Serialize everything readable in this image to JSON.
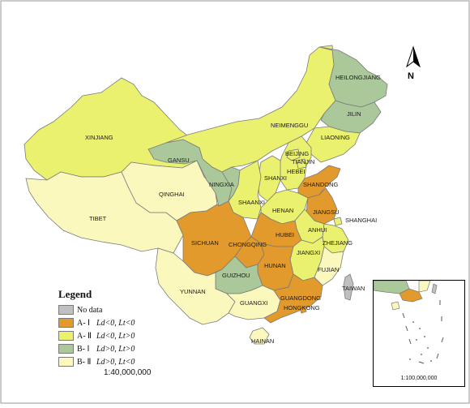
{
  "colors": {
    "no_data": "#c0c0c0",
    "a1": "#e39a2c",
    "a2": "#eaf16e",
    "b1": "#abc89a",
    "b2": "#fbf8bd",
    "sea": "#ffffff",
    "border": "#7a7a7a"
  },
  "legend": {
    "title": "Legend",
    "items": [
      {
        "code": "No data",
        "desc": "",
        "color_key": "no_data"
      },
      {
        "code": "A- Ⅰ",
        "desc": "Ld<0, Lt<0",
        "color_key": "a1"
      },
      {
        "code": "A- Ⅱ",
        "desc": "Ld<0, Lt>0",
        "color_key": "a2"
      },
      {
        "code": "B- Ⅰ",
        "desc": "Ld>0, Lt>0",
        "color_key": "b1"
      },
      {
        "code": "B- Ⅱ",
        "desc": "Ld>0, Lt<0",
        "color_key": "b2"
      }
    ]
  },
  "scale_main": "1:40,000,000",
  "scale_inset": "1:100,000,000",
  "north_label": "N",
  "provinces": [
    {
      "name": "XINJIANG",
      "category": "a2"
    },
    {
      "name": "TIBET",
      "category": "b2"
    },
    {
      "name": "QINGHAI",
      "category": "b2"
    },
    {
      "name": "GANSU",
      "category": "b1"
    },
    {
      "name": "NEIMENGGU",
      "category": "a2"
    },
    {
      "name": "HEILONGJIANG",
      "category": "b1"
    },
    {
      "name": "JILIN",
      "category": "b1"
    },
    {
      "name": "LIAONING",
      "category": "a2"
    },
    {
      "name": "BEIJING",
      "category": "a2"
    },
    {
      "name": "TIANJIN",
      "category": "a2"
    },
    {
      "name": "HEBEI",
      "category": "a2"
    },
    {
      "name": "SHANXI",
      "category": "a2"
    },
    {
      "name": "NINGXIA",
      "category": "b1"
    },
    {
      "name": "SHAANXI",
      "category": "a2"
    },
    {
      "name": "SHANDONG",
      "category": "a1"
    },
    {
      "name": "HENAN",
      "category": "a2"
    },
    {
      "name": "JIANGSU",
      "category": "a1"
    },
    {
      "name": "SHANGHAI",
      "category": "a2"
    },
    {
      "name": "ANHUI",
      "category": "a2"
    },
    {
      "name": "HUBEI",
      "category": "a1"
    },
    {
      "name": "SICHUAN",
      "category": "a1"
    },
    {
      "name": "CHONGQING",
      "category": "a1"
    },
    {
      "name": "ZHEJIANG",
      "category": "a2"
    },
    {
      "name": "JIANGXI",
      "category": "a2"
    },
    {
      "name": "HUNAN",
      "category": "a1"
    },
    {
      "name": "FUJIAN",
      "category": "b2"
    },
    {
      "name": "GUIZHOU",
      "category": "b1"
    },
    {
      "name": "YUNNAN",
      "category": "b2"
    },
    {
      "name": "GUANGXI",
      "category": "b2"
    },
    {
      "name": "GUANGDONG",
      "category": "a1"
    },
    {
      "name": "HONGKONG",
      "category": "a1"
    },
    {
      "name": "TAIWAN",
      "category": "no_data"
    },
    {
      "name": "HAINAN",
      "category": "b2"
    }
  ]
}
